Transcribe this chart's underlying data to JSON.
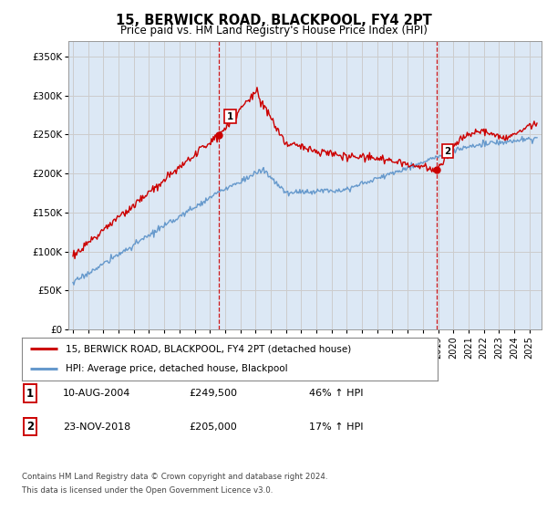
{
  "title": "15, BERWICK ROAD, BLACKPOOL, FY4 2PT",
  "subtitle": "Price paid vs. HM Land Registry's House Price Index (HPI)",
  "ylabel_ticks": [
    "£0",
    "£50K",
    "£100K",
    "£150K",
    "£200K",
    "£250K",
    "£300K",
    "£350K"
  ],
  "ylabel_values": [
    0,
    50000,
    100000,
    150000,
    200000,
    250000,
    300000,
    350000
  ],
  "ylim": [
    0,
    370000
  ],
  "xlim_start": 1994.7,
  "xlim_end": 2025.8,
  "sale1_date": 2004.61,
  "sale1_price": 249500,
  "sale1_label": "1",
  "sale2_date": 2018.9,
  "sale2_price": 205000,
  "sale2_label": "2",
  "legend_line1": "15, BERWICK ROAD, BLACKPOOL, FY4 2PT (detached house)",
  "legend_line2": "HPI: Average price, detached house, Blackpool",
  "table_row1": [
    "1",
    "10-AUG-2004",
    "£249,500",
    "46% ↑ HPI"
  ],
  "table_row2": [
    "2",
    "23-NOV-2018",
    "£205,000",
    "17% ↑ HPI"
  ],
  "footnote1": "Contains HM Land Registry data © Crown copyright and database right 2024.",
  "footnote2": "This data is licensed under the Open Government Licence v3.0.",
  "red_color": "#cc0000",
  "blue_color": "#6699cc",
  "grid_color": "#cccccc",
  "bg_color": "#ffffff",
  "plot_bg_color": "#dce8f5"
}
